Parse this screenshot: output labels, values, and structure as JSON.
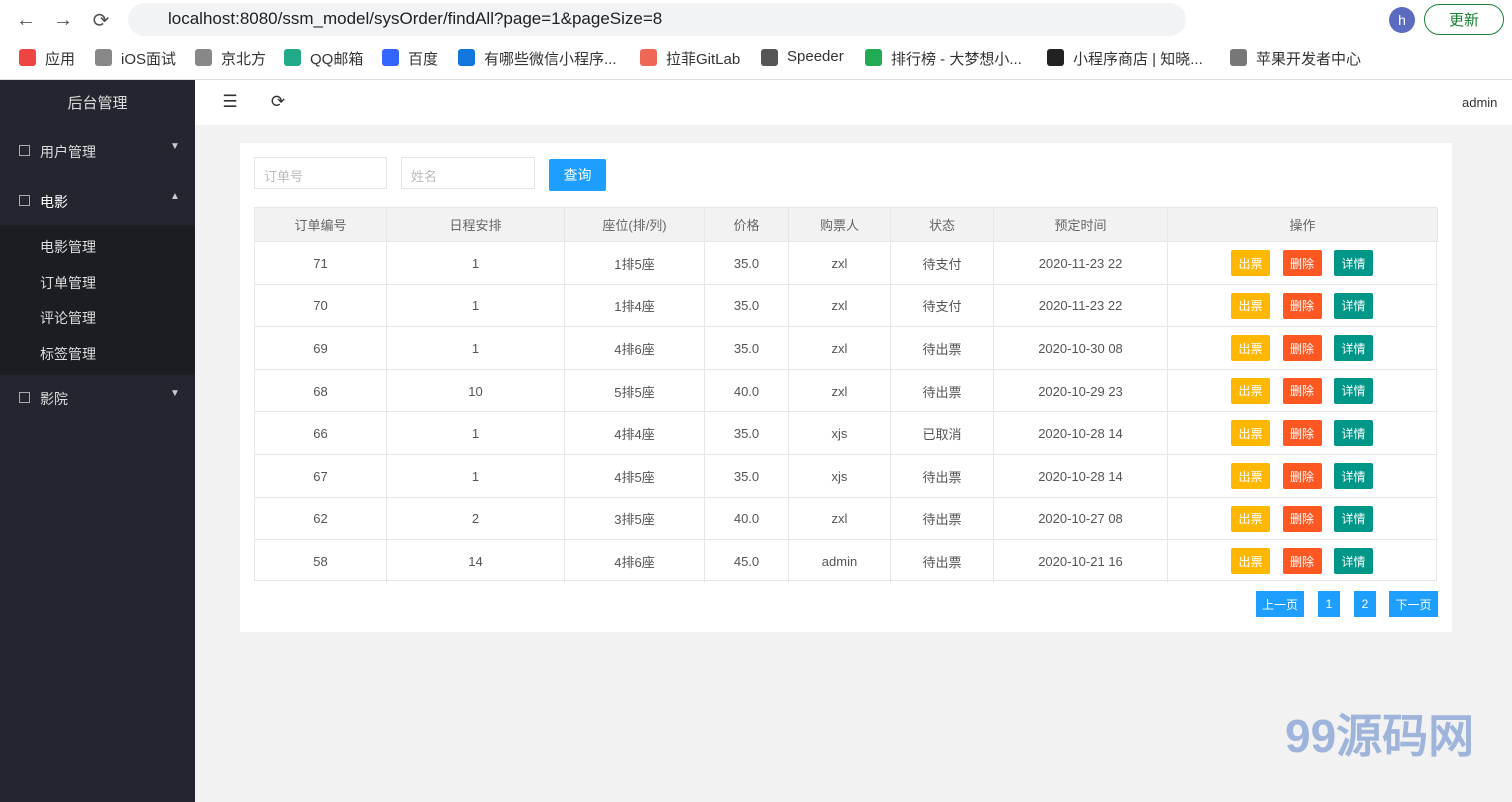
{
  "browser": {
    "url": "localhost:8080/ssm_model/sysOrder/findAll?page=1&pageSize=8",
    "update": "更新",
    "avatar": "h"
  },
  "bookmarks": [
    "应用",
    "iOS面试",
    "京北方",
    "QQ邮箱",
    "百度",
    "有哪些微信小程序...",
    "拉菲GitLab",
    "Speeder",
    "排行榜 - 大梦想小...",
    "小程序商店 | 知晓...",
    "苹果开发者中心"
  ],
  "sidebar": {
    "title": "后台管理",
    "menu": [
      {
        "label": "用户管理",
        "children": []
      },
      {
        "label": "电影",
        "children": [
          "电影管理",
          "订单管理",
          "评论管理",
          "标签管理"
        ]
      },
      {
        "label": "影院",
        "children": []
      }
    ]
  },
  "header": {
    "user": "admin"
  },
  "search": {
    "placeholders": [
      "订单号",
      "姓名"
    ],
    "button": "查询"
  },
  "table": {
    "columns": [
      "订单编号",
      "日程安排",
      "座位(排/列)",
      "价格",
      "购票人",
      "状态",
      "预定时间",
      "操作"
    ],
    "rows": [
      [
        "71",
        "1",
        "1排5座",
        "35.0",
        "zxl",
        "待支付",
        "2020-11-23 22"
      ],
      [
        "70",
        "1",
        "1排4座",
        "35.0",
        "zxl",
        "待支付",
        "2020-11-23 22"
      ],
      [
        "69",
        "1",
        "4排6座",
        "35.0",
        "zxl",
        "待出票",
        "2020-10-30 08"
      ],
      [
        "68",
        "10",
        "5排5座",
        "40.0",
        "zxl",
        "待出票",
        "2020-10-29 23"
      ],
      [
        "66",
        "1",
        "4排4座",
        "35.0",
        "xjs",
        "已取消",
        "2020-10-28 14"
      ],
      [
        "67",
        "1",
        "4排5座",
        "35.0",
        "xjs",
        "待出票",
        "2020-10-28 14"
      ],
      [
        "62",
        "2",
        "3排5座",
        "40.0",
        "zxl",
        "待出票",
        "2020-10-27 08"
      ],
      [
        "58",
        "14",
        "4排6座",
        "45.0",
        "admin",
        "待出票",
        "2020-10-21 16"
      ]
    ],
    "actions": [
      "出票",
      "删除",
      "详情"
    ]
  },
  "pagination": [
    "上一页",
    "1",
    "2",
    "下一页"
  ],
  "watermark": "99源码网"
}
